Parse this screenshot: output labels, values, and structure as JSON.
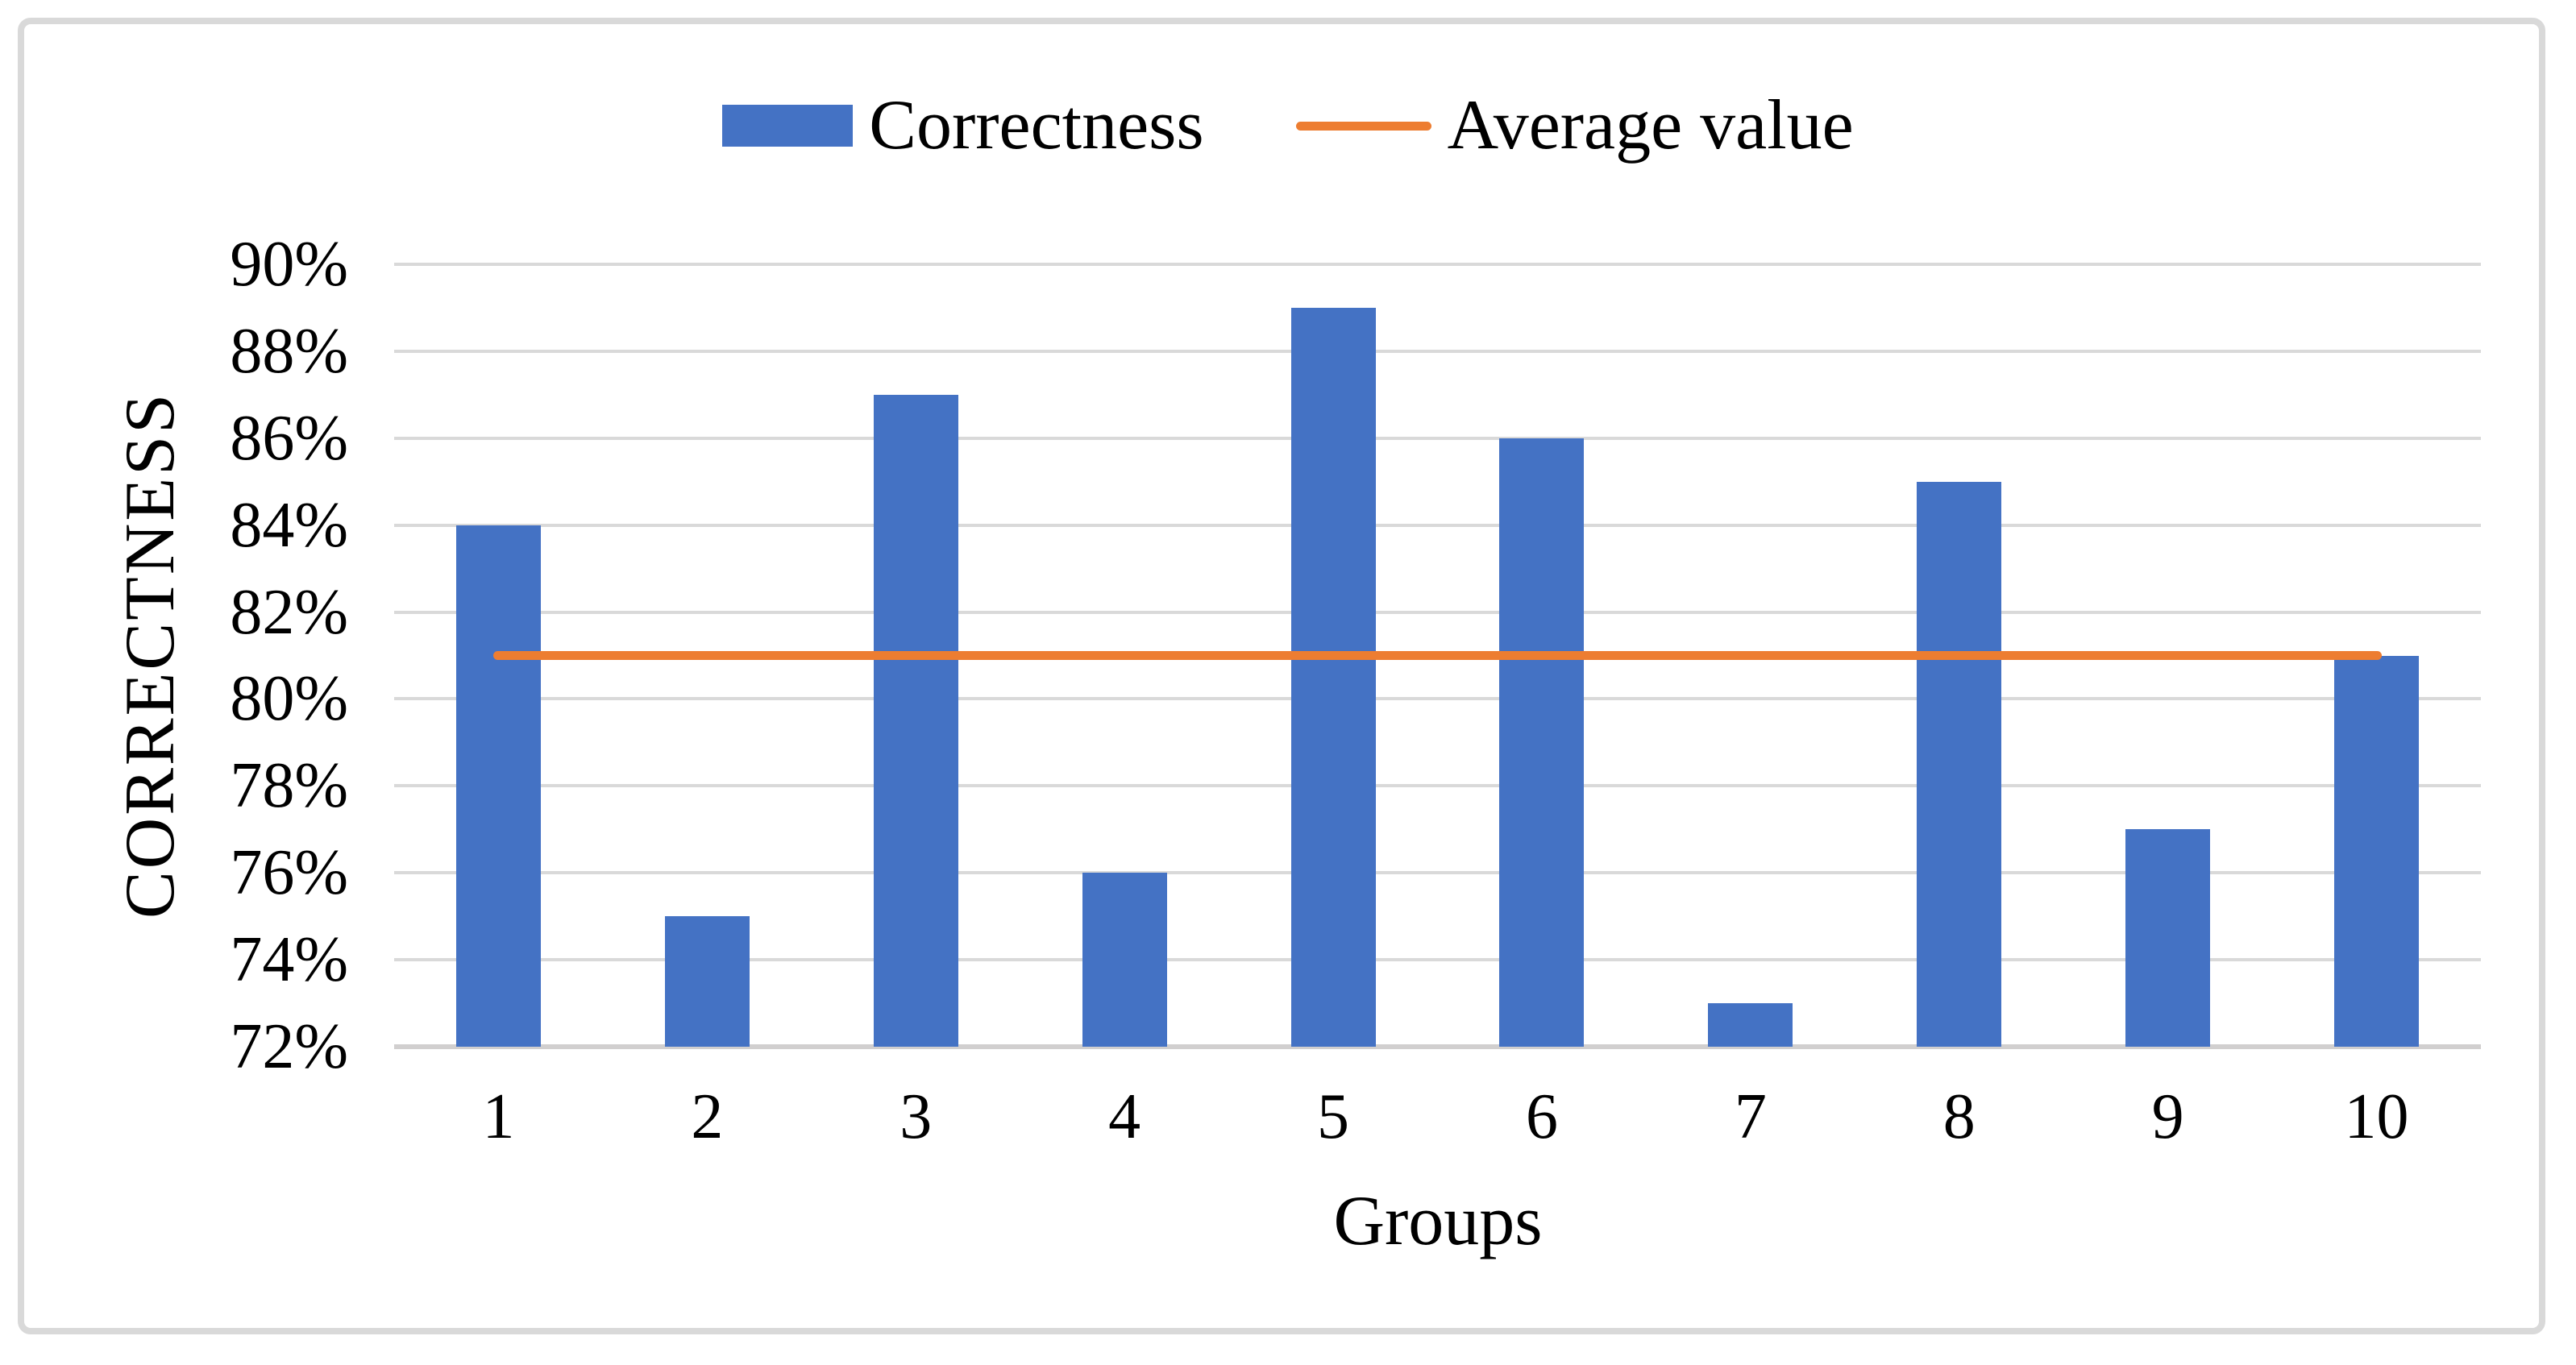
{
  "figure": {
    "background": "#ffffff",
    "border_color": "#d9d9d9",
    "gridline_color": "#d9d9d9",
    "axis_line_color": "#d1cfcf",
    "text_color": "#000000"
  },
  "legend": {
    "items": [
      {
        "label": "Correctness",
        "swatch": "box",
        "color": "#4472c4"
      },
      {
        "label": "Average value",
        "swatch": "line",
        "color": "#ed7d31"
      }
    ]
  },
  "chart_data": {
    "type": "bar",
    "title": "",
    "xlabel": "Groups",
    "ylabel": "CORRECTNESS",
    "categories": [
      "1",
      "2",
      "3",
      "4",
      "5",
      "6",
      "7",
      "8",
      "9",
      "10"
    ],
    "series": [
      {
        "name": "Correctness",
        "type": "bar",
        "color": "#4472c4",
        "values": [
          84,
          75,
          87,
          76,
          89,
          86,
          73,
          85,
          77,
          81
        ]
      },
      {
        "name": "Average value",
        "type": "line",
        "color": "#ed7d31",
        "value": 81,
        "span": "category 1 center to category 10 center"
      }
    ],
    "ylim": [
      72,
      90
    ],
    "ytick_step": 2,
    "ytick_suffix": "%",
    "grid": true,
    "legend_position": "top-center"
  }
}
